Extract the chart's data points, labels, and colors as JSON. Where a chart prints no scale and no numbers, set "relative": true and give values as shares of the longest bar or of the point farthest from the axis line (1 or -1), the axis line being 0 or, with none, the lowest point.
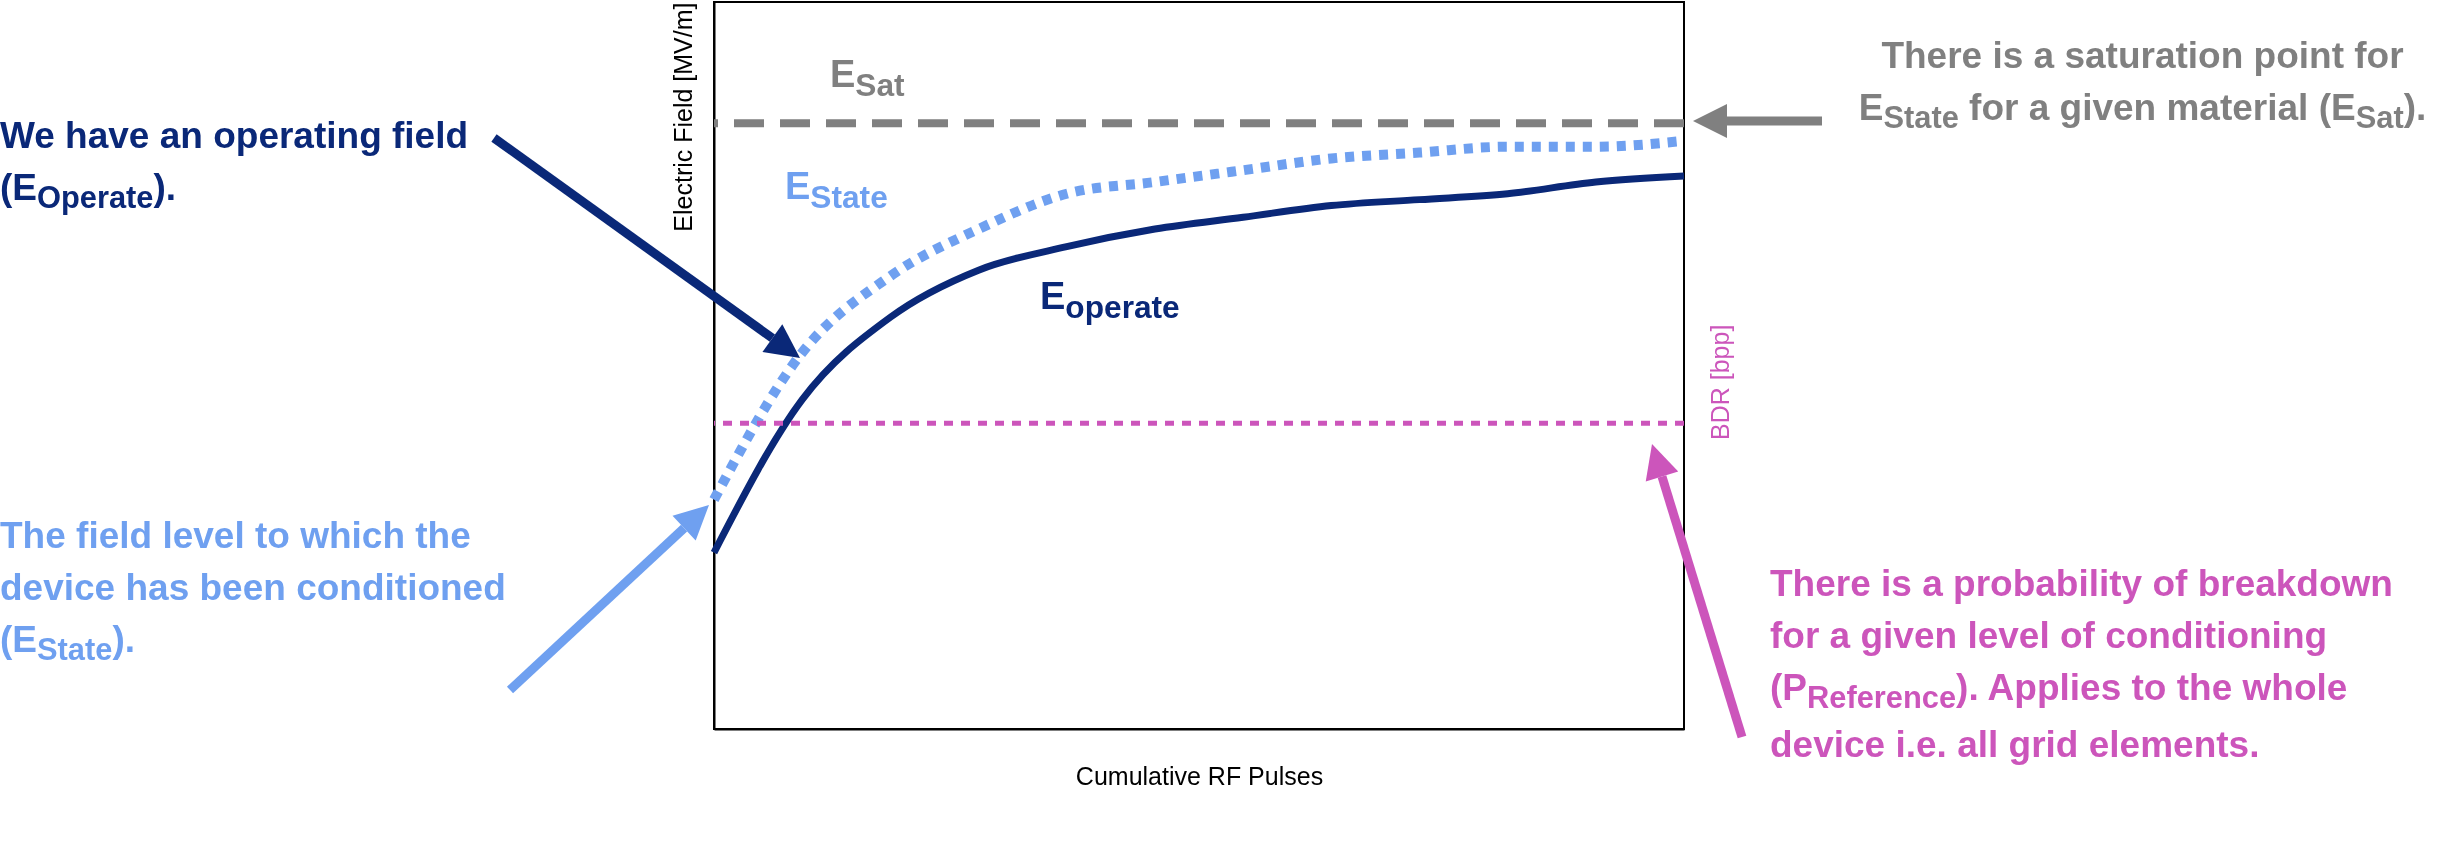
{
  "chart_data": {
    "type": "line",
    "relative": true,
    "xlabel": "Cumulative RF Pulses",
    "ylabel": "Electric Field [MV/m]",
    "y2label": "BDR [bpp]",
    "categories": [
      null,
      null,
      null,
      null,
      null,
      null,
      null,
      null,
      null,
      null,
      null,
      null
    ],
    "series": [
      {
        "name": "E$_{State}$",
        "color": "#6fa0f0",
        "line_style": "dotted",
        "values": [
          0.39,
          0.64,
          0.77,
          0.85,
          0.91,
          0.93,
          0.95,
          0.97,
          0.98,
          0.99,
          0.99,
          1
        ]
      },
      {
        "name": "E$_{operate}$",
        "color": "#0a2878",
        "line_style": "solid",
        "values": [
          0.3,
          0.56,
          0.7,
          0.78,
          0.82,
          0.85,
          0.87,
          0.89,
          0.9,
          0.91,
          0.93,
          0.94
        ]
      }
    ],
    "ref_lines": [
      {
        "axis": "y",
        "value": 1.03,
        "label": "E$_{Sat}$",
        "color": "#808080",
        "line_style": "dashed"
      },
      {
        "axis": "y",
        "value": 0.52,
        "color": "#cc55bb",
        "line_style": "dotted"
      }
    ],
    "annotations": [
      "We have an operating field (E$_{Operate}$).",
      "The field level to which the device has been conditioned (E$_{State}$).",
      "There is a saturation point for E$_{State}$ for a given material (E$_{Sat}$).",
      "There is a probability of breakdown for a given level of conditioning (P$_{Reference}$). Applies to the whole device i.e. all grid elements."
    ]
  }
}
